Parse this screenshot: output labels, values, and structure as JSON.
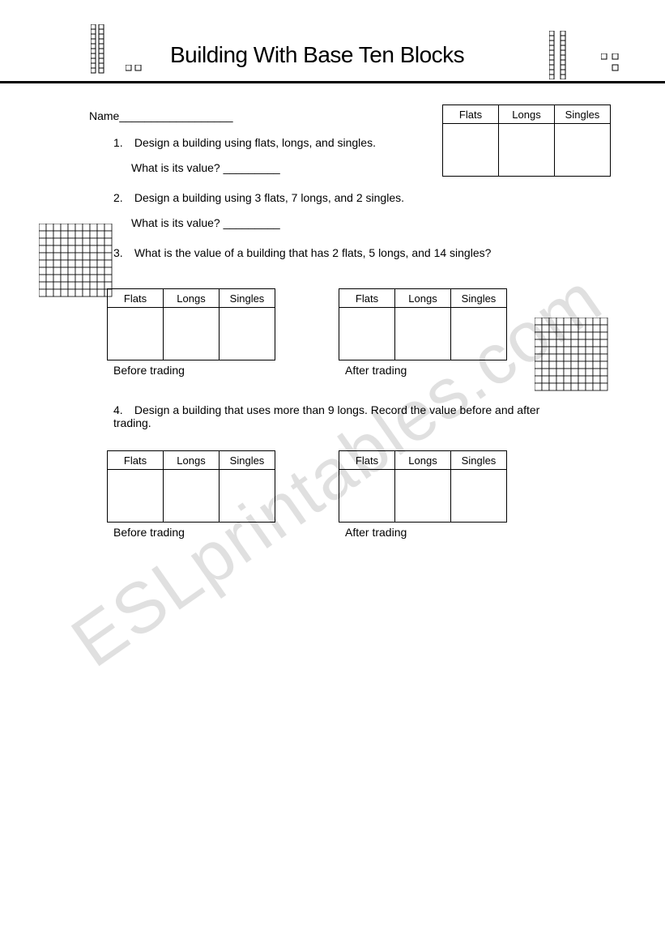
{
  "title": "Building With Base Ten Blocks",
  "name_label": "Name__________________",
  "q1": {
    "num": "1.",
    "text": "Design a building using flats, longs, and singles."
  },
  "q1_sub": "What is its value? _________",
  "q2": {
    "num": "2.",
    "text": "Design a building using 3 flats, 7 longs, and 2 singles."
  },
  "q2_sub": "What is its value? _________",
  "q3": {
    "num": "3.",
    "text": "What is the value of a building that has 2 flats, 5 longs, and 14 singles?"
  },
  "q4": {
    "num": "4.",
    "text": "Design a building that uses more than 9 longs.  Record the value before and after trading."
  },
  "table_headers": {
    "c1": "Flats",
    "c2": "Longs",
    "c3": "Singles"
  },
  "captions": {
    "before": "Before trading",
    "after": "After trading"
  },
  "watermark": "ESLprintables.com",
  "graphics": {
    "long_block": {
      "cells": 10,
      "cell_size": 6,
      "stroke": "#000000",
      "fill": "#ffffff"
    },
    "flat_block": {
      "cells": 10,
      "cell_size": 8,
      "stroke": "#000000",
      "fill": "#ffffff"
    },
    "single_size": 7
  },
  "table_col_width": 68,
  "table_body_height": 60
}
